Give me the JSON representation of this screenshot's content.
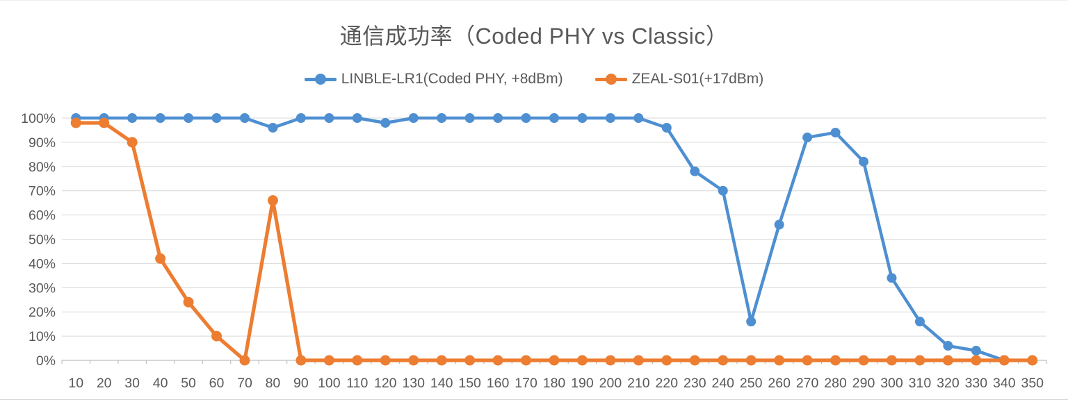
{
  "colors": {
    "text": "#595959",
    "grid": "#d9d9d9",
    "axis": "#bfbfbf",
    "series_blue": "#4e8fd1",
    "series_orange": "#ed7d31",
    "background": "#ffffff"
  },
  "chart_data": {
    "type": "line",
    "title": "通信成功率（Coded PHY vs Classic）",
    "xlabel": "",
    "ylabel": "",
    "x": [
      10,
      20,
      30,
      40,
      50,
      60,
      70,
      80,
      90,
      100,
      110,
      120,
      130,
      140,
      150,
      160,
      170,
      180,
      190,
      200,
      210,
      220,
      230,
      240,
      250,
      260,
      270,
      280,
      290,
      300,
      310,
      320,
      330,
      340,
      350
    ],
    "ylim": [
      0,
      100
    ],
    "ytick_step": 10,
    "ytick_format": "percent",
    "grid": true,
    "legend_position": "top",
    "series": [
      {
        "name": "LINBLE-LR1(Coded PHY, +8dBm)",
        "color": "#4e8fd1",
        "marker": "circle",
        "values": [
          100,
          100,
          100,
          100,
          100,
          100,
          100,
          96,
          100,
          100,
          100,
          98,
          100,
          100,
          100,
          100,
          100,
          100,
          100,
          100,
          100,
          96,
          78,
          70,
          16,
          56,
          92,
          94,
          82,
          34,
          16,
          6,
          4,
          0,
          0
        ]
      },
      {
        "name": "ZEAL-S01(+17dBm)",
        "color": "#ed7d31",
        "marker": "circle",
        "values": [
          98,
          98,
          90,
          42,
          24,
          10,
          0,
          66,
          0,
          0,
          0,
          0,
          0,
          0,
          0,
          0,
          0,
          0,
          0,
          0,
          0,
          0,
          0,
          0,
          0,
          0,
          0,
          0,
          0,
          0,
          0,
          0,
          0,
          0,
          0
        ]
      }
    ]
  }
}
